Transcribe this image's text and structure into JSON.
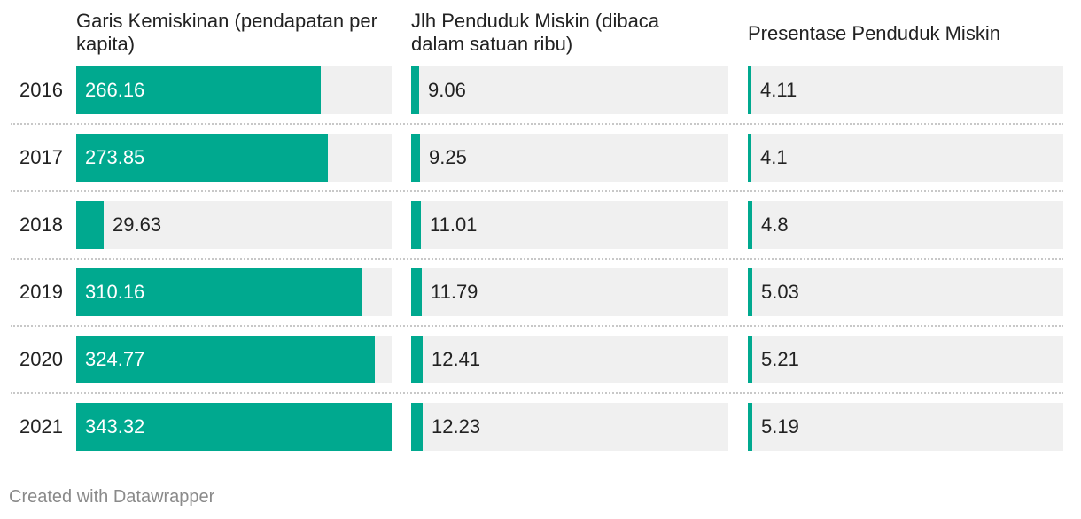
{
  "chart_data": {
    "type": "bar",
    "categories": [
      "2016",
      "2017",
      "2018",
      "2019",
      "2020",
      "2021"
    ],
    "series": [
      {
        "name": "Garis Kemiskinan (pendapatan per kapita)",
        "values": [
          266.16,
          273.85,
          29.63,
          310.16,
          324.77,
          343.32
        ],
        "max": 343.32
      },
      {
        "name": "Jlh Penduduk Miskin (dibaca dalam satuan ribu)",
        "values": [
          9.06,
          9.25,
          11.01,
          11.79,
          12.41,
          12.23
        ],
        "max": 343.32
      },
      {
        "name": "Presentase Penduduk Miskin",
        "values": [
          4.11,
          4.1,
          4.8,
          5.03,
          5.21,
          5.19
        ],
        "max": 343.32
      }
    ],
    "value_labels": [
      [
        "266.16",
        "273.85",
        "29.63",
        "310.16",
        "324.77",
        "343.32"
      ],
      [
        "9.06",
        "9.25",
        "11.01",
        "11.79",
        "12.41",
        "12.23"
      ],
      [
        "4.11",
        "4.1",
        "4.8",
        "5.03",
        "5.21",
        "5.19"
      ]
    ],
    "bar_color": "#00a98f",
    "track_color": "#f0f0f0"
  },
  "footer": "Created with Datawrapper"
}
